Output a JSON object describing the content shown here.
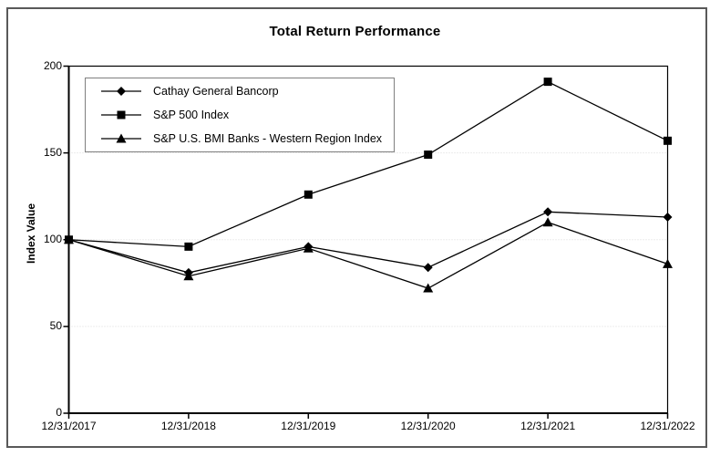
{
  "chart_data": {
    "type": "line",
    "title": "Total Return Performance",
    "xlabel": "",
    "ylabel": "Index Value",
    "x": [
      "12/31/2017",
      "12/31/2018",
      "12/31/2019",
      "12/31/2020",
      "12/31/2021",
      "12/31/2022"
    ],
    "series": [
      {
        "name": "Cathay General Bancorp",
        "marker": "diamond",
        "values": [
          100,
          81,
          96,
          84,
          116,
          113
        ]
      },
      {
        "name": "S&P 500 Index",
        "marker": "square",
        "values": [
          100,
          96,
          126,
          149,
          191,
          157
        ]
      },
      {
        "name": "S&P U.S. BMI Banks - Western Region Index",
        "marker": "triangle",
        "values": [
          100,
          79,
          95,
          72,
          110,
          86
        ]
      }
    ],
    "ylim": [
      0,
      200
    ],
    "yticks": [
      0,
      50,
      100,
      150,
      200
    ],
    "gridlines": [
      50,
      100,
      150
    ],
    "grid_style": "dotted",
    "legend_position": "top-left-inside",
    "colors": {
      "series": "#000000",
      "grid": "#d9d9d9",
      "axis": "#000000",
      "outer_border": "#595959",
      "legend_border": "#808080",
      "background": "#ffffff"
    }
  }
}
